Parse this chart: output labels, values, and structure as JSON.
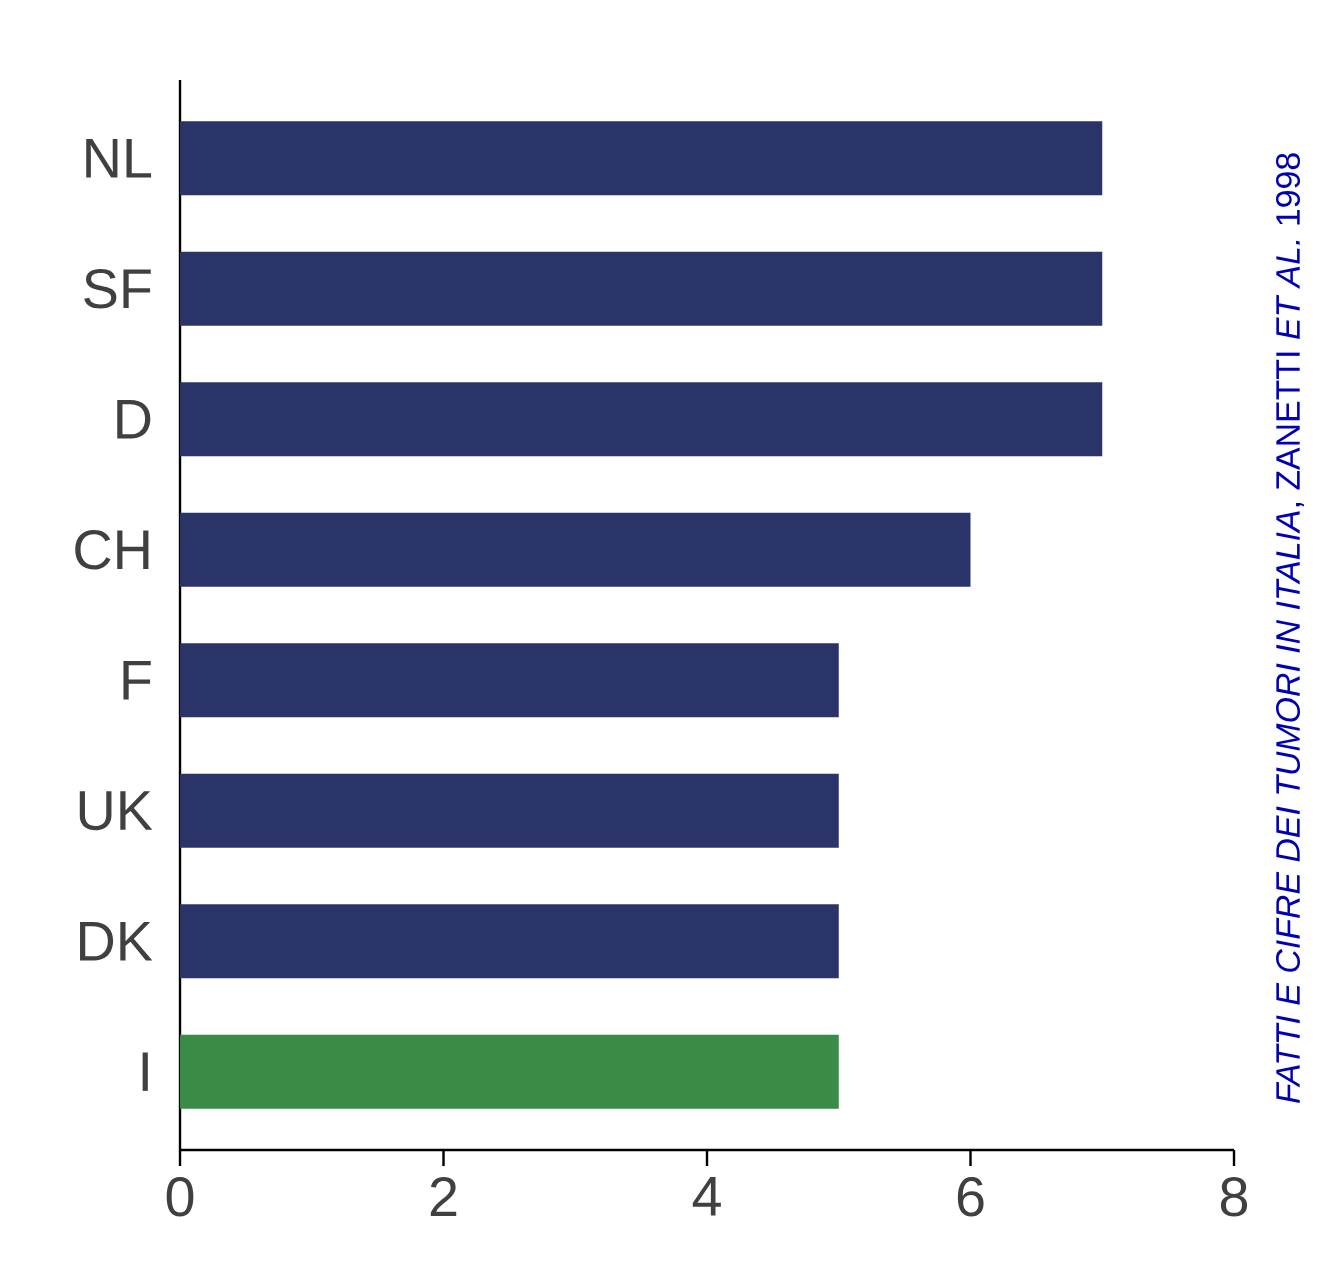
{
  "chart_data": {
    "type": "bar",
    "orientation": "horizontal",
    "categories": [
      "NL",
      "SF",
      "D",
      "CH",
      "F",
      "UK",
      "DK",
      "I"
    ],
    "values": [
      7,
      7,
      7,
      6,
      5,
      5,
      5,
      5
    ],
    "colors": [
      "#2b3468",
      "#2b3468",
      "#2b3468",
      "#2b3468",
      "#2b3468",
      "#2b3468",
      "#2b3468",
      "#3a8a48"
    ],
    "xlim": [
      0,
      8
    ],
    "xticks": [
      0,
      2,
      4,
      6,
      8
    ],
    "grid": false,
    "annotations": [
      "*FATTI E CIFRE DEI TUMORI IN ITALIA*, ZANETTI *ET AL.* 1998"
    ]
  }
}
